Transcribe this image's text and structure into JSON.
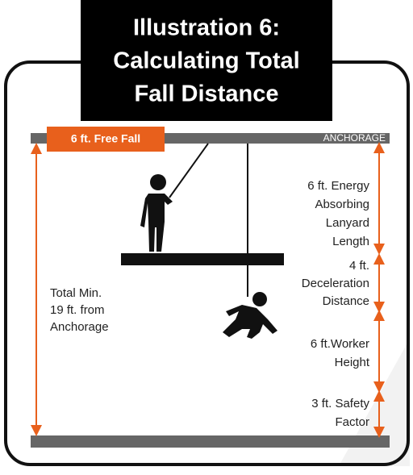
{
  "title": {
    "lines": [
      "Illustration 6:",
      "Calculating Total",
      "Fall Distance"
    ]
  },
  "free_fall": "6 ft. Free Fall",
  "anchorage": "ANCHORAGE",
  "total": {
    "lines": [
      "Total Min.",
      "19 ft. from",
      "Anchorage"
    ]
  },
  "segments": [
    {
      "lines": [
        "6 ft. Energy",
        "Absorbing",
        "Lanyard",
        "Length"
      ]
    },
    {
      "lines": [
        "4 ft.",
        "Deceleration",
        "Distance"
      ]
    },
    {
      "lines": [
        "6 ft.Worker",
        "Height"
      ]
    },
    {
      "lines": [
        "3 ft. Safety",
        "Factor"
      ]
    }
  ]
}
